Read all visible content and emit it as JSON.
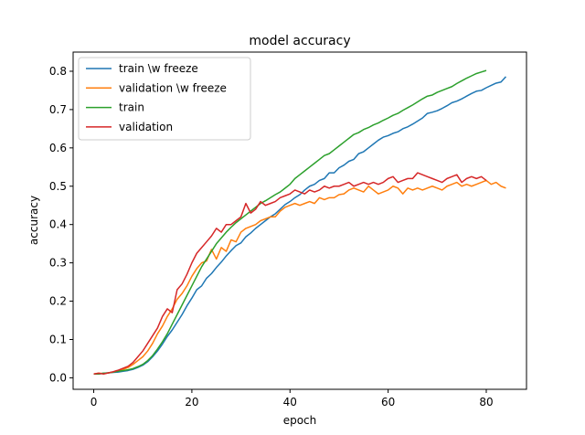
{
  "chart_data": {
    "type": "line",
    "title": "model accuracy",
    "xlabel": "epoch",
    "ylabel": "accuracy",
    "xlim": [
      -4.2,
      88.2
    ],
    "ylim": [
      -0.03,
      0.85
    ],
    "xticks": [
      0,
      20,
      40,
      60,
      80
    ],
    "yticks": [
      0.0,
      0.1,
      0.2,
      0.3,
      0.4,
      0.5,
      0.6,
      0.7,
      0.8
    ],
    "legend_position": "top-left",
    "grid": false,
    "series": [
      {
        "name": "train \\w freeze",
        "color": "#1f77b4",
        "y": [
          0.01,
          0.01,
          0.012,
          0.013,
          0.014,
          0.015,
          0.017,
          0.019,
          0.022,
          0.027,
          0.033,
          0.042,
          0.055,
          0.07,
          0.088,
          0.108,
          0.125,
          0.145,
          0.165,
          0.188,
          0.208,
          0.23,
          0.24,
          0.26,
          0.272,
          0.288,
          0.302,
          0.318,
          0.332,
          0.345,
          0.352,
          0.368,
          0.378,
          0.39,
          0.4,
          0.41,
          0.42,
          0.428,
          0.44,
          0.452,
          0.46,
          0.47,
          0.478,
          0.49,
          0.5,
          0.505,
          0.515,
          0.52,
          0.535,
          0.535,
          0.548,
          0.555,
          0.565,
          0.57,
          0.585,
          0.59,
          0.6,
          0.61,
          0.62,
          0.628,
          0.632,
          0.638,
          0.642,
          0.65,
          0.655,
          0.662,
          0.67,
          0.678,
          0.69,
          0.693,
          0.697,
          0.703,
          0.71,
          0.718,
          0.722,
          0.728,
          0.735,
          0.742,
          0.748,
          0.75,
          0.757,
          0.763,
          0.769,
          0.772,
          0.786
        ]
      },
      {
        "name": "validation \\w freeze",
        "color": "#ff7f0e",
        "y": [
          0.01,
          0.012,
          0.011,
          0.013,
          0.015,
          0.018,
          0.022,
          0.027,
          0.035,
          0.045,
          0.055,
          0.07,
          0.09,
          0.115,
          0.135,
          0.16,
          0.18,
          0.205,
          0.22,
          0.24,
          0.265,
          0.285,
          0.3,
          0.305,
          0.335,
          0.31,
          0.34,
          0.33,
          0.36,
          0.355,
          0.38,
          0.39,
          0.395,
          0.4,
          0.41,
          0.415,
          0.42,
          0.42,
          0.435,
          0.445,
          0.45,
          0.455,
          0.45,
          0.455,
          0.46,
          0.455,
          0.47,
          0.465,
          0.47,
          0.47,
          0.478,
          0.48,
          0.49,
          0.495,
          0.49,
          0.485,
          0.5,
          0.49,
          0.48,
          0.485,
          0.49,
          0.5,
          0.495,
          0.48,
          0.495,
          0.49,
          0.495,
          0.49,
          0.495,
          0.5,
          0.495,
          0.49,
          0.5,
          0.505,
          0.51,
          0.5,
          0.505,
          0.5,
          0.505,
          0.51,
          0.515,
          0.505,
          0.51,
          0.5,
          0.495
        ]
      },
      {
        "name": "train",
        "color": "#2ca02c",
        "y": [
          0.01,
          0.01,
          0.012,
          0.013,
          0.015,
          0.017,
          0.019,
          0.021,
          0.024,
          0.029,
          0.035,
          0.045,
          0.058,
          0.075,
          0.094,
          0.115,
          0.14,
          0.165,
          0.19,
          0.215,
          0.24,
          0.265,
          0.29,
          0.31,
          0.33,
          0.35,
          0.365,
          0.38,
          0.393,
          0.405,
          0.415,
          0.425,
          0.435,
          0.445,
          0.455,
          0.462,
          0.47,
          0.478,
          0.485,
          0.495,
          0.505,
          0.52,
          0.53,
          0.54,
          0.55,
          0.56,
          0.57,
          0.58,
          0.585,
          0.595,
          0.605,
          0.615,
          0.625,
          0.635,
          0.64,
          0.648,
          0.653,
          0.66,
          0.665,
          0.672,
          0.678,
          0.685,
          0.69,
          0.698,
          0.705,
          0.712,
          0.72,
          0.728,
          0.735,
          0.738,
          0.745,
          0.75,
          0.755,
          0.76,
          0.768,
          0.775,
          0.782,
          0.788,
          0.794,
          0.798,
          0.802
        ]
      },
      {
        "name": "validation",
        "color": "#d62728",
        "y": [
          0.01,
          0.012,
          0.01,
          0.013,
          0.016,
          0.02,
          0.025,
          0.03,
          0.04,
          0.055,
          0.07,
          0.09,
          0.11,
          0.13,
          0.16,
          0.18,
          0.17,
          0.23,
          0.245,
          0.27,
          0.3,
          0.325,
          0.34,
          0.355,
          0.37,
          0.39,
          0.38,
          0.4,
          0.4,
          0.41,
          0.42,
          0.455,
          0.43,
          0.44,
          0.46,
          0.45,
          0.455,
          0.46,
          0.47,
          0.475,
          0.48,
          0.49,
          0.485,
          0.48,
          0.49,
          0.485,
          0.49,
          0.5,
          0.495,
          0.5,
          0.5,
          0.505,
          0.51,
          0.5,
          0.505,
          0.51,
          0.505,
          0.51,
          0.505,
          0.51,
          0.52,
          0.525,
          0.51,
          0.515,
          0.52,
          0.52,
          0.535,
          0.53,
          0.525,
          0.52,
          0.515,
          0.51,
          0.52,
          0.525,
          0.53,
          0.51,
          0.52,
          0.525,
          0.52,
          0.525,
          0.515
        ]
      }
    ]
  }
}
